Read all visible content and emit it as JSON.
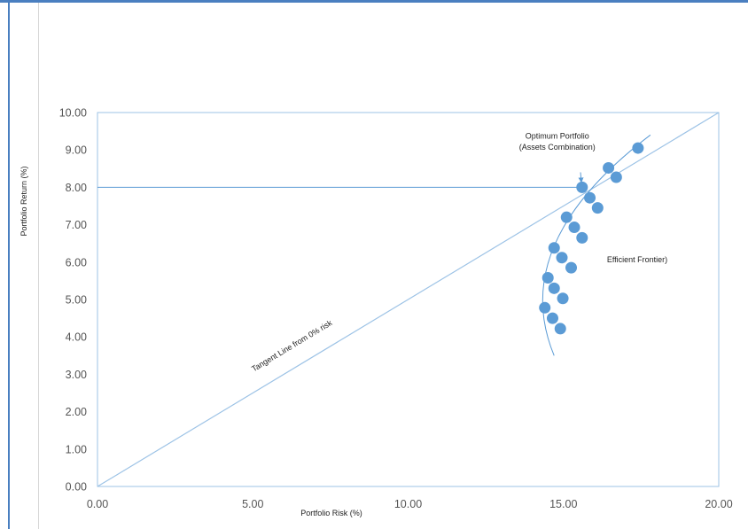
{
  "chart_data": {
    "type": "scatter",
    "xlabel": "Portfolio Risk (%)",
    "ylabel": "Portfolio Return (%)",
    "xlim": [
      0,
      20
    ],
    "ylim": [
      0,
      10
    ],
    "x_ticks": [
      "0.00",
      "5.00",
      "10.00",
      "15.00",
      "20.00"
    ],
    "y_ticks": [
      "0.00",
      "1.00",
      "2.00",
      "3.00",
      "4.00",
      "5.00",
      "6.00",
      "7.00",
      "8.00",
      "9.00",
      "10.00"
    ],
    "grid": false,
    "marker_color": "#5b9bd5",
    "line_color": "#9dc3e6",
    "series": [
      {
        "points": [
          {
            "x": 17.4,
            "y": 9.05
          },
          {
            "x": 16.45,
            "y": 8.52
          },
          {
            "x": 16.7,
            "y": 8.27
          },
          {
            "x": 15.6,
            "y": 8.0
          },
          {
            "x": 15.85,
            "y": 7.72
          },
          {
            "x": 16.1,
            "y": 7.45
          },
          {
            "x": 15.1,
            "y": 7.2
          },
          {
            "x": 15.35,
            "y": 6.93
          },
          {
            "x": 15.6,
            "y": 6.65
          },
          {
            "x": 14.7,
            "y": 6.38
          },
          {
            "x": 14.95,
            "y": 6.12
          },
          {
            "x": 15.25,
            "y": 5.85
          },
          {
            "x": 14.5,
            "y": 5.58
          },
          {
            "x": 14.7,
            "y": 5.3
          },
          {
            "x": 14.98,
            "y": 5.03
          },
          {
            "x": 14.4,
            "y": 4.78
          },
          {
            "x": 14.65,
            "y": 4.5
          },
          {
            "x": 14.9,
            "y": 4.22
          }
        ]
      }
    ],
    "lines": {
      "tangent": {
        "from": [
          0,
          0
        ],
        "to": [
          20,
          10
        ]
      },
      "optimum_return_level": {
        "y": 8.0,
        "x_from": 0,
        "x_to": 15.6
      }
    },
    "frontier_curve": [
      [
        14.7,
        3.5
      ],
      [
        13.2,
        6.5
      ],
      [
        17.8,
        9.4
      ]
    ],
    "annotations": {
      "optimum_line1": "Optimum Portfolio",
      "optimum_line2": "(Assets Combination)",
      "frontier_label": "Efficient Frontier)",
      "tangent_label": "Tangent Line from 0% risk"
    },
    "annotation_positions": {
      "optimum_line1": {
        "x": 14.8,
        "y": 9.3
      },
      "optimum_line2": {
        "x": 14.8,
        "y": 9.0
      },
      "optimum_arrow_start": {
        "x": 15.55,
        "y": 8.4
      },
      "frontier_label": {
        "x": 16.4,
        "y": 6.0
      },
      "tangent_label": {
        "x": 6.3,
        "y": 3.7
      }
    }
  }
}
